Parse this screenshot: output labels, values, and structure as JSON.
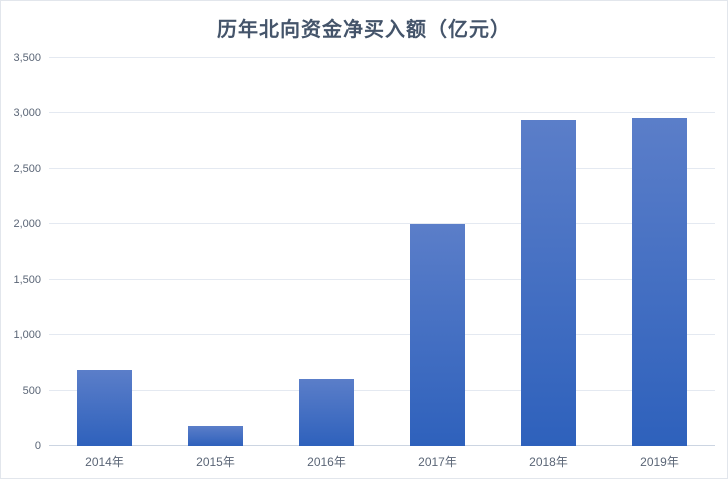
{
  "chart_data": {
    "type": "bar",
    "title": "历年北向资金净买入额（亿元）",
    "categories": [
      "2014年",
      "2015年",
      "2016年",
      "2017年",
      "2018年",
      "2019年"
    ],
    "values": [
      685,
      180,
      605,
      2000,
      2942,
      2955
    ],
    "xlabel": "",
    "ylabel": "",
    "ylim": [
      0,
      3500
    ],
    "ytick_interval": 500,
    "ytick_labels": [
      "0",
      "500",
      "1,000",
      "1,500",
      "2,000",
      "2,500",
      "3,000",
      "3,500"
    ],
    "grid": true,
    "legend": false,
    "colors": {
      "bar_gradient_top": "#5b7ec9",
      "bar_gradient_bottom": "#2e61bc",
      "title_text": "#44546a",
      "tick_text": "#5a6576",
      "gridline": "#e4e9f1",
      "axis_line": "#ccd5e2",
      "panel_border": "#e2e6ec",
      "background": "#ffffff"
    }
  }
}
